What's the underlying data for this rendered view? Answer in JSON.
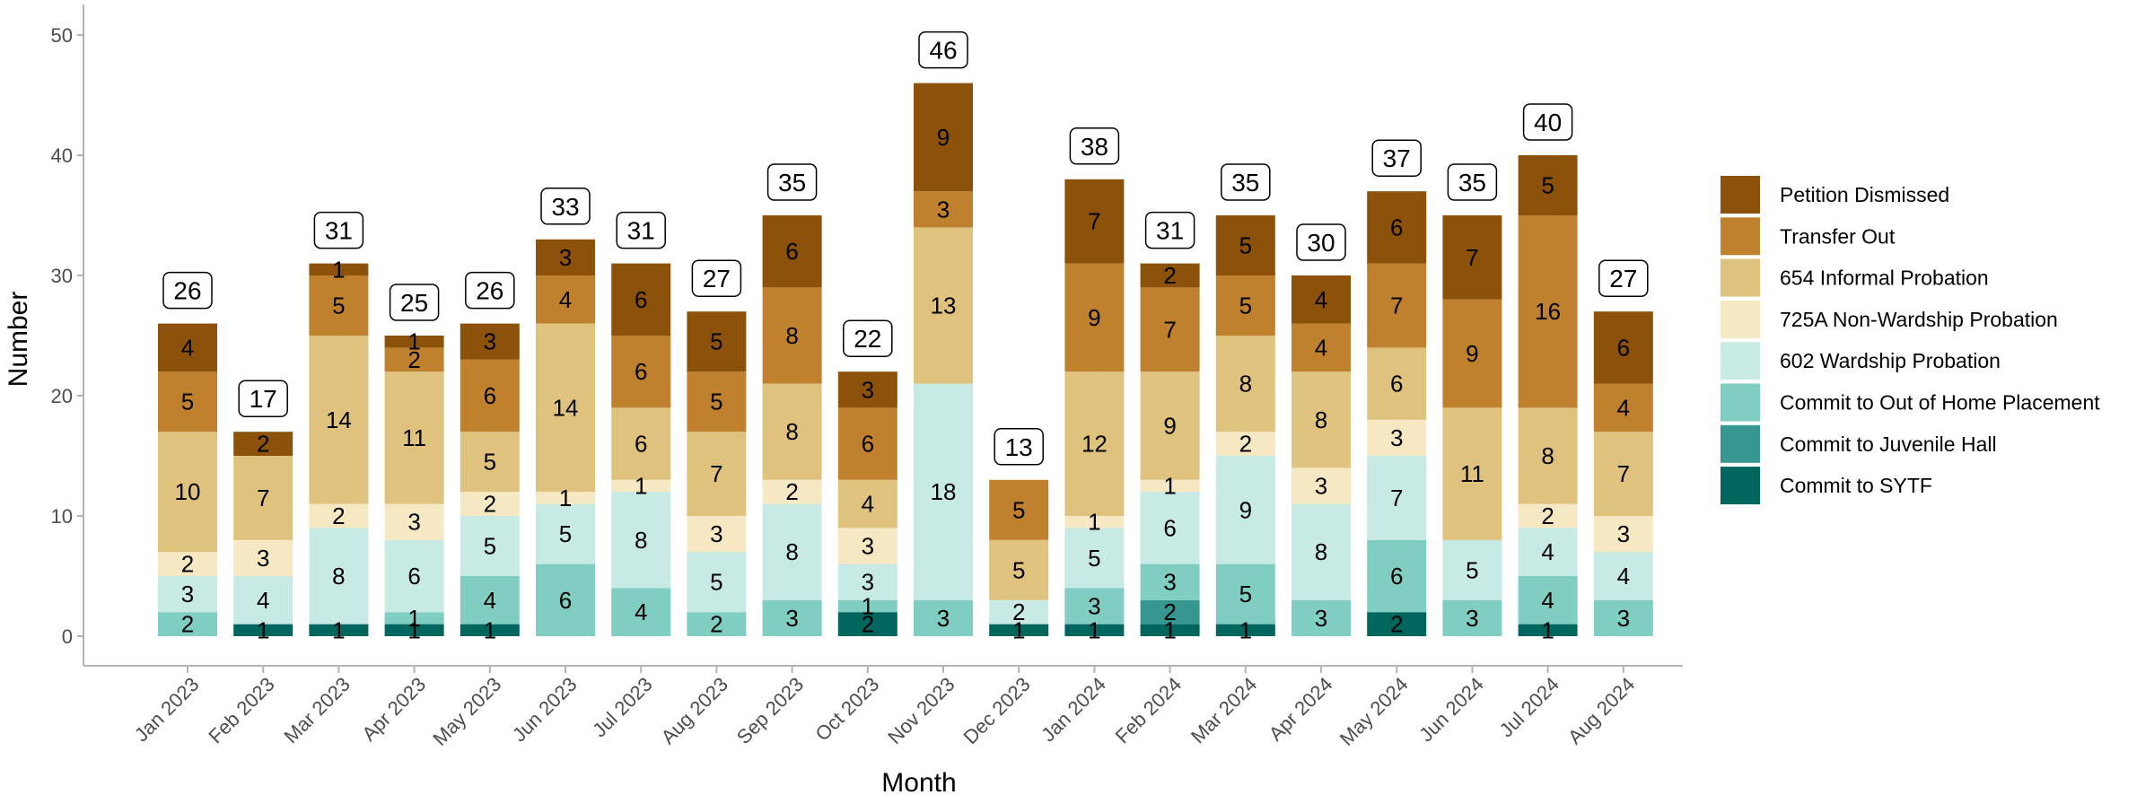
{
  "chart_data": {
    "type": "bar",
    "stacked": true,
    "xlabel": "Month",
    "ylabel": "Number",
    "ylim": [
      0,
      50
    ],
    "yticks": [
      0,
      10,
      20,
      30,
      40,
      50
    ],
    "grid": false,
    "legend_position": "right",
    "categories": [
      "Jan 2023",
      "Feb 2023",
      "Mar 2023",
      "Apr 2023",
      "May 2023",
      "Jun 2023",
      "Jul 2023",
      "Aug 2023",
      "Sep 2023",
      "Oct 2023",
      "Nov 2023",
      "Dec 2023",
      "Jan 2024",
      "Feb 2024",
      "Mar 2024",
      "Apr 2024",
      "May 2024",
      "Jun 2024",
      "Jul 2024",
      "Aug 2024"
    ],
    "totals": [
      26,
      17,
      31,
      25,
      26,
      33,
      31,
      27,
      35,
      22,
      46,
      13,
      38,
      31,
      35,
      30,
      37,
      35,
      40,
      27
    ],
    "series": [
      {
        "name": "Commit to SYTF",
        "color": "#01665e",
        "values": [
          0,
          1,
          1,
          1,
          1,
          0,
          0,
          0,
          0,
          2,
          0,
          1,
          1,
          1,
          1,
          0,
          2,
          0,
          1,
          0
        ]
      },
      {
        "name": "Commit to Juvenile Hall",
        "color": "#35978f",
        "values": [
          0,
          0,
          0,
          0,
          0,
          0,
          0,
          0,
          0,
          0,
          0,
          0,
          0,
          2,
          0,
          0,
          0,
          0,
          0,
          0
        ]
      },
      {
        "name": "Commit to Out of Home Placement",
        "color": "#80cdc1",
        "values": [
          2,
          0,
          0,
          1,
          4,
          6,
          4,
          2,
          3,
          1,
          3,
          0,
          3,
          3,
          5,
          3,
          6,
          3,
          4,
          3
        ]
      },
      {
        "name": "602 Wardship Probation",
        "color": "#c7eae5",
        "values": [
          3,
          4,
          8,
          6,
          5,
          5,
          8,
          5,
          8,
          3,
          18,
          2,
          5,
          6,
          9,
          8,
          7,
          5,
          4,
          4
        ]
      },
      {
        "name": "725A Non-Wardship Probation",
        "color": "#f6e8c3",
        "values": [
          2,
          3,
          2,
          3,
          2,
          1,
          1,
          3,
          2,
          3,
          0,
          0,
          1,
          1,
          2,
          3,
          3,
          0,
          2,
          3
        ]
      },
      {
        "name": "654 Informal Probation",
        "color": "#dfc27d",
        "values": [
          10,
          7,
          14,
          11,
          5,
          14,
          6,
          7,
          8,
          4,
          13,
          5,
          12,
          9,
          8,
          8,
          6,
          11,
          8,
          7
        ]
      },
      {
        "name": "Transfer Out",
        "color": "#bf812d",
        "values": [
          5,
          0,
          5,
          2,
          6,
          4,
          6,
          5,
          8,
          6,
          3,
          5,
          9,
          7,
          5,
          4,
          7,
          9,
          16,
          4
        ]
      },
      {
        "name": "Petition Dismissed",
        "color": "#8c510a",
        "values": [
          4,
          2,
          1,
          1,
          3,
          3,
          6,
          5,
          6,
          3,
          9,
          0,
          7,
          2,
          5,
          4,
          6,
          7,
          5,
          6
        ]
      }
    ]
  }
}
